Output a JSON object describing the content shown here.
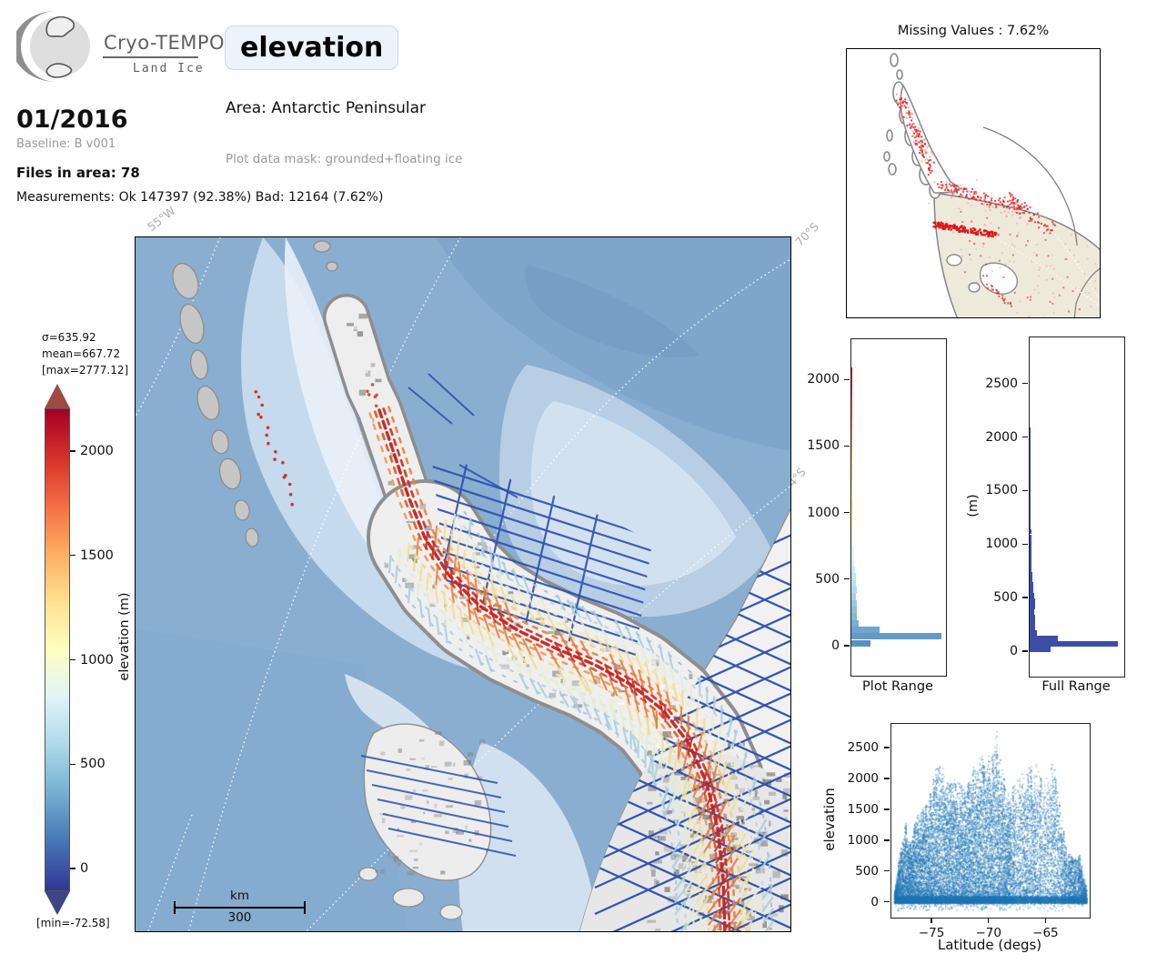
{
  "header": {
    "logo_title": "Cryo-TEMPO",
    "logo_subtitle": "Land Ice",
    "variable_badge": "elevation",
    "date": "01/2016",
    "baseline": "Baseline: B v001",
    "files_in_area": "Files in area: 78",
    "measurements": "Measurements: Ok 147397 (92.38%) Bad: 12164 (7.62%)",
    "area": "Area: Antarctic Peninsular",
    "plot_mask": "Plot data mask: grounded+floating ice"
  },
  "minimap": {
    "title": "Missing Values : 7.62%"
  },
  "map": {
    "graticule_labels": {
      "lon55w": "55°W",
      "lat70s": "70°S",
      "lat74s": "74°S"
    },
    "scalebar": {
      "unit": "km",
      "value": "300"
    },
    "ocean_color": "#8aaed0",
    "track_color": "#2b4fae"
  },
  "colorbar": {
    "stats_sigma": "σ=635.92",
    "stats_mean": "mean=667.72",
    "stats_max": "[max=2777.12]",
    "stats_min": "[min=-72.58]",
    "label": "elevation (m)",
    "ticks": [
      0,
      500,
      1000,
      1500,
      2000
    ],
    "vmin": -109,
    "vmax": 2205,
    "over_arrow_color": "#9e4a42",
    "under_arrow_color": "#3e4584",
    "palette": [
      "#313695",
      "#4575b4",
      "#74add1",
      "#abd9e9",
      "#e0f3f8",
      "#ffffbf",
      "#fee090",
      "#fdae61",
      "#f46d43",
      "#d73027",
      "#a50026"
    ]
  },
  "chart_data": [
    {
      "type": "bar",
      "name": "plot_range_histogram",
      "orientation": "horizontal",
      "title": "Plot Range",
      "ylabel": "",
      "ylim": [
        -220,
        2310
      ],
      "yticks": [
        0,
        500,
        1000,
        1500,
        2000
      ],
      "bin_size": 50,
      "bin_start": 0,
      "color_mode": "elevation_colormap",
      "color_vmin": -350,
      "color_vmax": 2210,
      "bin_fractions": [
        0.2,
        0.95,
        0.3,
        0.075,
        0.06,
        0.055,
        0.055,
        0.05,
        0.055,
        0.05,
        0.045,
        0.038,
        0.032,
        0.028,
        0.025,
        0.022,
        0.02,
        0.019,
        0.018,
        0.017,
        0.016,
        0.015,
        0.014,
        0.013,
        0.013,
        0.012,
        0.012,
        0.011,
        0.011,
        0.01,
        0.01,
        0.01,
        0.009,
        0.009,
        0.009,
        0.008,
        0.008,
        0.008,
        0.007,
        0.007,
        0.007,
        0.006
      ]
    },
    {
      "type": "bar",
      "name": "full_range_histogram",
      "orientation": "horizontal",
      "title": "Full Range",
      "ylabel": "(m)",
      "ylim": [
        -230,
        2940
      ],
      "yticks": [
        0,
        500,
        1000,
        1500,
        2000,
        2500
      ],
      "bin_size": 50,
      "bin_start": 0,
      "color_mode": "solid",
      "color": "#3d4da5",
      "bin_fractions": [
        0.22,
        0.93,
        0.3,
        0.075,
        0.06,
        0.055,
        0.055,
        0.05,
        0.055,
        0.06,
        0.05,
        0.04,
        0.034,
        0.03,
        0.026,
        0.023,
        0.021,
        0.02,
        0.019,
        0.018,
        0.017,
        0.016,
        0.015,
        0.014,
        0.013,
        0.012,
        0.012,
        0.011,
        0.011,
        0.01,
        0.01,
        0.01,
        0.009,
        0.009,
        0.009,
        0.008,
        0.008,
        0.008,
        0.007,
        0.007,
        0.007,
        0.006
      ]
    },
    {
      "type": "scatter",
      "name": "elevation_vs_latitude",
      "xlabel": "Latitude (degs)",
      "ylabel": "elevation",
      "xlim": [
        -78.6,
        -61.2
      ],
      "ylim": [
        -240,
        2900
      ],
      "xticks": [
        -75,
        -70,
        -65
      ],
      "yticks": [
        0,
        500,
        1000,
        1500,
        2000,
        2500
      ],
      "color": "#1f77b4",
      "envelope": [
        [
          -78.4,
          120
        ],
        [
          -78.2,
          400
        ],
        [
          -78.0,
          700
        ],
        [
          -77.8,
          900
        ],
        [
          -77.6,
          1000
        ],
        [
          -77.4,
          1350
        ],
        [
          -77.2,
          1100
        ],
        [
          -77.0,
          950
        ],
        [
          -76.8,
          1100
        ],
        [
          -76.6,
          1300
        ],
        [
          -76.4,
          1380
        ],
        [
          -76.2,
          1420
        ],
        [
          -76.0,
          1500
        ],
        [
          -75.8,
          1550
        ],
        [
          -75.6,
          1600
        ],
        [
          -75.4,
          1650
        ],
        [
          -75.2,
          1800
        ],
        [
          -75.0,
          1950
        ],
        [
          -74.8,
          2100
        ],
        [
          -74.6,
          2250
        ],
        [
          -74.4,
          2250
        ],
        [
          -74.2,
          2150
        ],
        [
          -74.0,
          2050
        ],
        [
          -73.8,
          1950
        ],
        [
          -73.6,
          1900
        ],
        [
          -73.4,
          1950
        ],
        [
          -73.2,
          2000
        ],
        [
          -73.0,
          1950
        ],
        [
          -72.8,
          1900
        ],
        [
          -72.6,
          1950
        ],
        [
          -72.4,
          1900
        ],
        [
          -72.2,
          1850
        ],
        [
          -72.0,
          1900
        ],
        [
          -71.8,
          2000
        ],
        [
          -71.6,
          2100
        ],
        [
          -71.4,
          2150
        ],
        [
          -71.2,
          2200
        ],
        [
          -71.0,
          2250
        ],
        [
          -70.8,
          2300
        ],
        [
          -70.6,
          2250
        ],
        [
          -70.4,
          2300
        ],
        [
          -70.2,
          2350
        ],
        [
          -70.0,
          2300
        ],
        [
          -69.8,
          2400
        ],
        [
          -69.6,
          2550
        ],
        [
          -69.4,
          2770
        ],
        [
          -69.2,
          2300
        ],
        [
          -69.0,
          2200
        ],
        [
          -68.8,
          2100
        ],
        [
          -68.6,
          1900
        ],
        [
          -68.4,
          1750
        ],
        [
          -68.2,
          1700
        ],
        [
          -68.0,
          1800
        ],
        [
          -67.8,
          1900
        ],
        [
          -67.6,
          2000
        ],
        [
          -67.4,
          2050
        ],
        [
          -67.2,
          2100
        ],
        [
          -67.0,
          2050
        ],
        [
          -66.8,
          2100
        ],
        [
          -66.6,
          2150
        ],
        [
          -66.4,
          2200
        ],
        [
          -66.2,
          2150
        ],
        [
          -66.0,
          2200
        ],
        [
          -65.8,
          2100
        ],
        [
          -65.6,
          2050
        ],
        [
          -65.4,
          2000
        ],
        [
          -65.2,
          1950
        ],
        [
          -65.0,
          2000
        ],
        [
          -64.8,
          2100
        ],
        [
          -64.6,
          2250
        ],
        [
          -64.4,
          2200
        ],
        [
          -64.2,
          2000
        ],
        [
          -64.0,
          1800
        ],
        [
          -63.8,
          1500
        ],
        [
          -63.6,
          1300
        ],
        [
          -63.4,
          1000
        ],
        [
          -63.2,
          850
        ],
        [
          -63.0,
          800
        ],
        [
          -62.8,
          750
        ],
        [
          -62.6,
          700
        ],
        [
          -62.4,
          750
        ],
        [
          -62.2,
          800
        ],
        [
          -62.0,
          700
        ],
        [
          -61.8,
          500
        ],
        [
          -61.6,
          300
        ]
      ]
    }
  ]
}
